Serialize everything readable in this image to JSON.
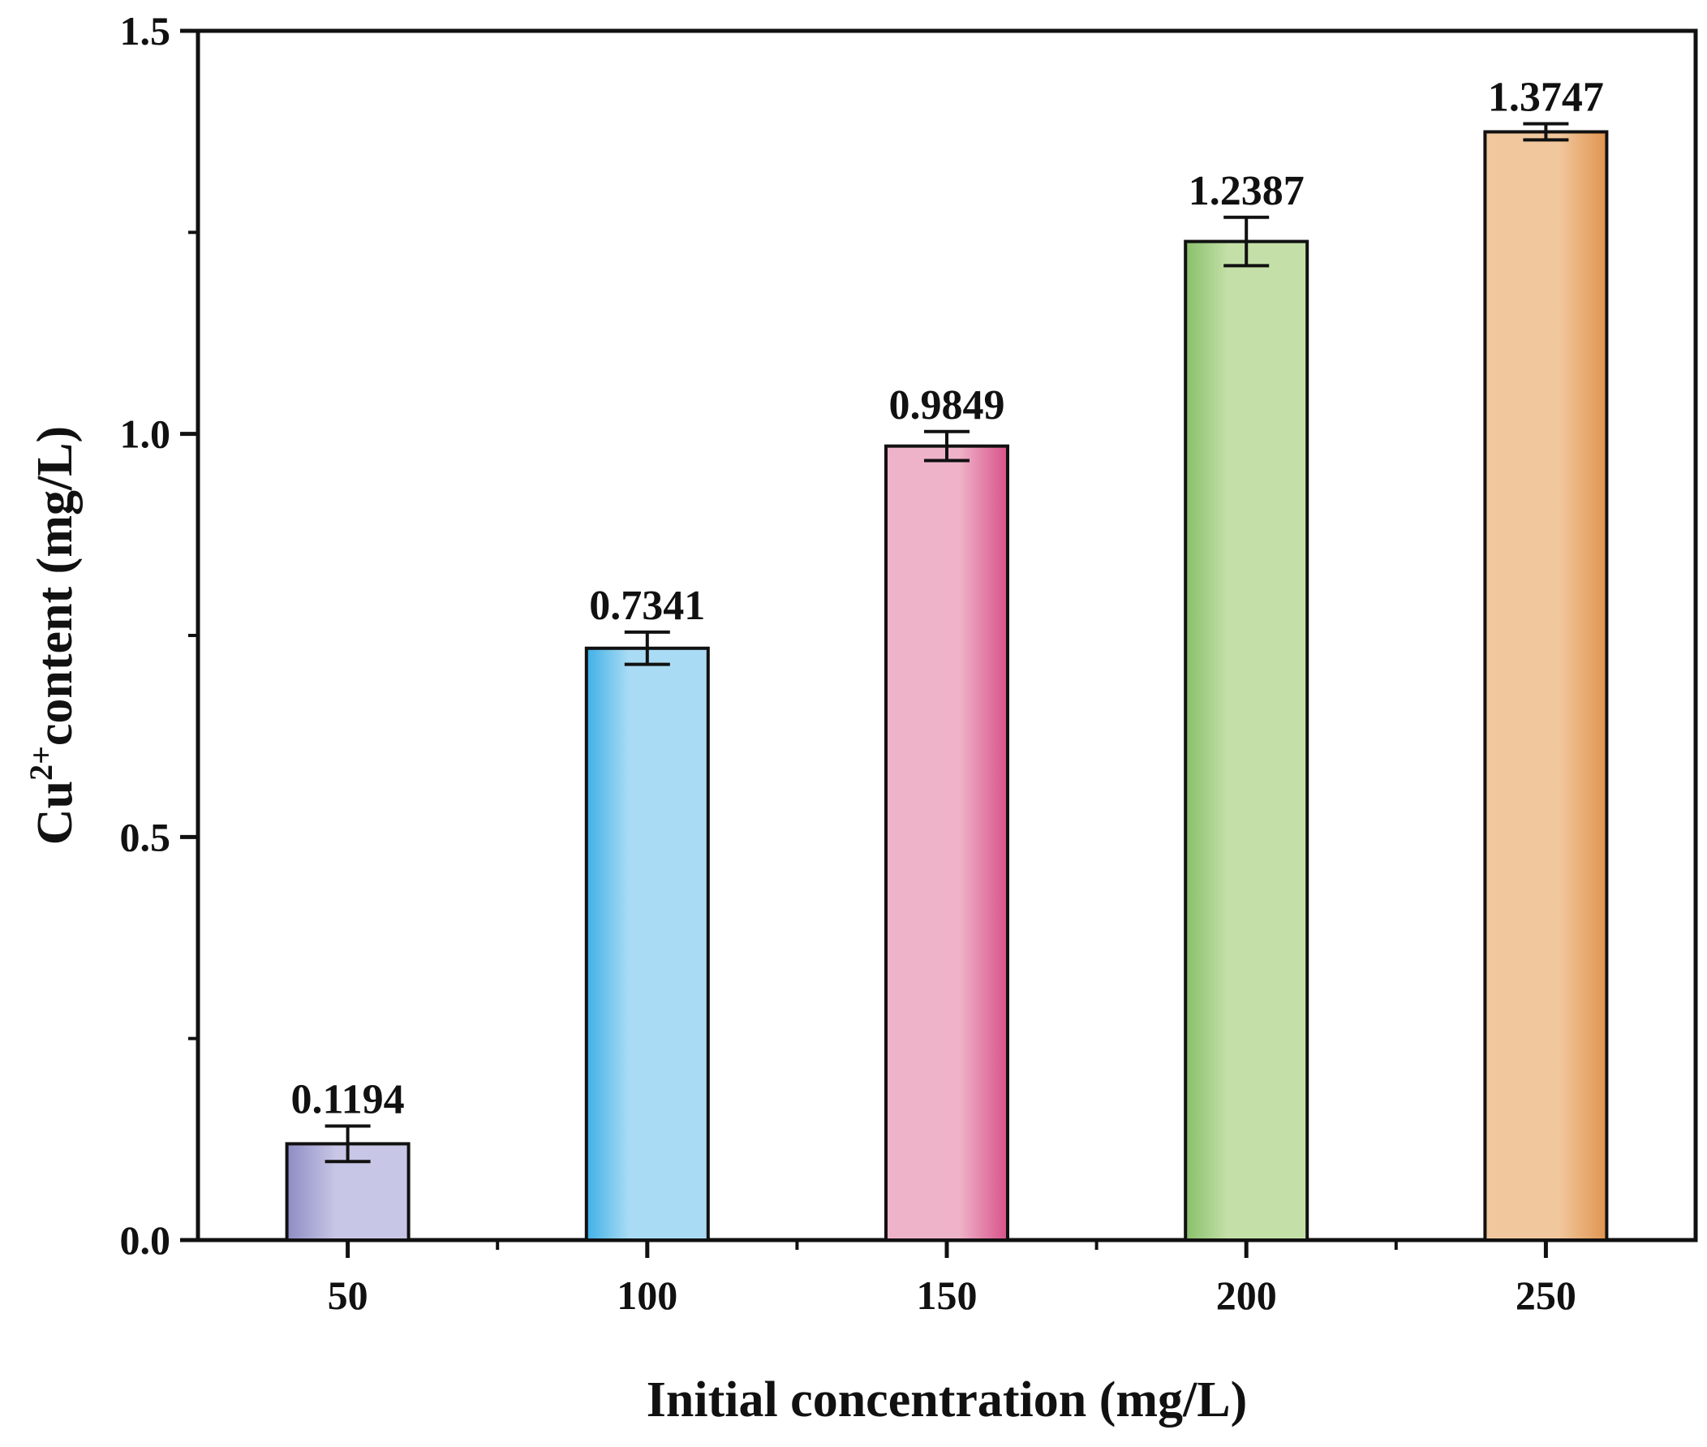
{
  "chart_data": {
    "type": "bar",
    "title": "",
    "xlabel": "Initial concentration (mg/L)",
    "ylabel": {
      "prefix": "Cu",
      "superscript": "2+",
      "suffix": "content (mg/L)"
    },
    "categories": [
      "50",
      "100",
      "150",
      "200",
      "250"
    ],
    "values": [
      0.1194,
      0.7341,
      0.9849,
      1.2387,
      1.3747
    ],
    "value_labels": [
      "0.1194",
      "0.7341",
      "0.9849",
      "1.2387",
      "1.3747"
    ],
    "errors": [
      0.022,
      0.02,
      0.018,
      0.03,
      0.01
    ],
    "colors": [
      [
        "#8e8cc4",
        "#c7c6e6"
      ],
      [
        "#3fb0e6",
        "#a9dcf4"
      ],
      [
        "#d8528a",
        "#efb3c9"
      ],
      [
        "#88c06a",
        "#c4e0a8"
      ],
      [
        "#e0944f",
        "#f1c89e"
      ]
    ],
    "ylim": [
      0,
      1.5
    ],
    "yticks": [
      "0.0",
      "0.5",
      "1.0",
      "1.5"
    ],
    "ytick_values": [
      0,
      0.5,
      1.0,
      1.5
    ],
    "yminor": [
      0.25,
      0.75,
      1.25
    ],
    "grid": false,
    "legend": "none"
  }
}
